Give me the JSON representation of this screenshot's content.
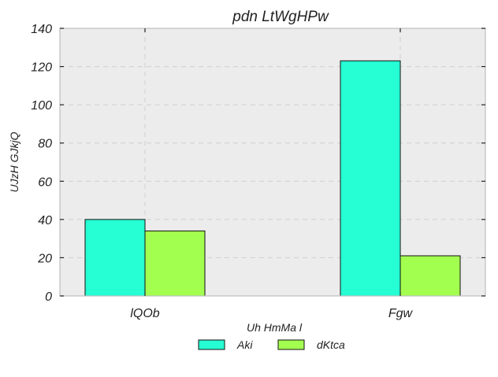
{
  "chart_data": {
    "type": "bar",
    "title": "pdn LtWgHPw",
    "xlabel": "",
    "ylabel": "UJzH GJkjQ",
    "categories": [
      "lQOb",
      "Fgw"
    ],
    "series": [
      {
        "name": "Aki",
        "values": [
          40,
          123
        ],
        "color": "#26ffd4"
      },
      {
        "name": "dKtca",
        "values": [
          34,
          21
        ],
        "color": "#a3ff4f"
      }
    ],
    "ylim": [
      0,
      140
    ],
    "yticks": [
      0,
      20,
      40,
      60,
      80,
      100,
      120,
      140
    ],
    "grid": true,
    "legend": {
      "title": "Uh HmMa l",
      "placement": "bottom-center"
    }
  },
  "colors": {
    "plot_background": "#ececec",
    "grid": "#cfcfcf",
    "bar_edge": "#111111",
    "axis_frame": "#bdbdbd",
    "tick": "#222222"
  }
}
